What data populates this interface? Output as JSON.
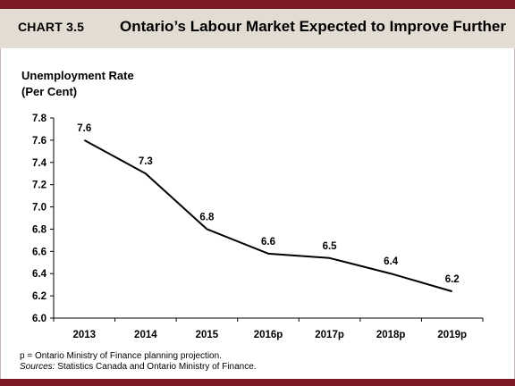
{
  "header": {
    "chart_number": "CHART 3.5",
    "title": "Ontario’s Labour Market Expected to Improve Further"
  },
  "footnotes": {
    "note": "p = Ontario Ministry of Finance planning projection.",
    "sources_label": "Sources:",
    "sources_text": " Statistics Canada and Ontario Ministry of Finance."
  },
  "colors": {
    "accent": "#7b1a24",
    "header_bg": "#e3dcd2",
    "line": "#000000"
  },
  "chart_data": {
    "type": "line",
    "title": "Ontario’s Labour Market Expected to Improve Further",
    "ylabel_line1": "Unemployment Rate",
    "ylabel_line2": "(Per Cent)",
    "xlabel": "",
    "categories": [
      "2013",
      "2014",
      "2015",
      "2016p",
      "2017p",
      "2018p",
      "2019p"
    ],
    "values": [
      7.6,
      7.3,
      6.8,
      6.6,
      6.5,
      6.4,
      6.2
    ],
    "plotted_values": [
      7.6,
      7.3,
      6.8,
      6.58,
      6.54,
      6.4,
      6.24
    ],
    "data_labels": [
      "7.6",
      "7.3",
      "6.8",
      "6.6",
      "6.5",
      "6.4",
      "6.2"
    ],
    "ylim": [
      6.0,
      7.8
    ],
    "yticks": [
      "6.0",
      "6.2",
      "6.4",
      "6.6",
      "6.8",
      "7.0",
      "7.2",
      "7.4",
      "7.6",
      "7.8"
    ],
    "grid": false,
    "legend": "none"
  }
}
